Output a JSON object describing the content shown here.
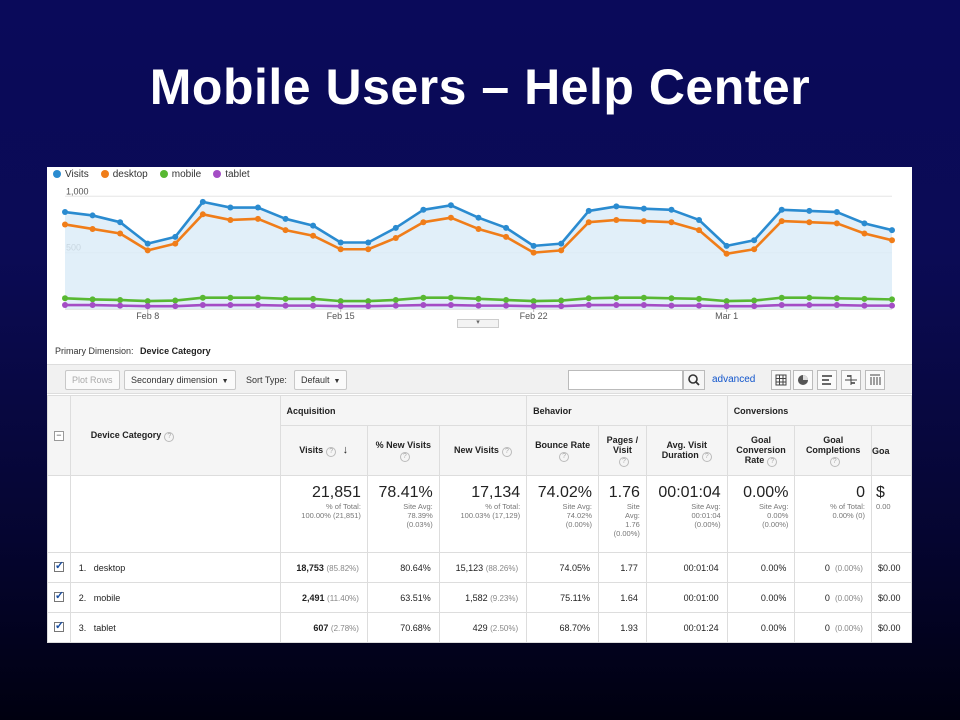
{
  "slide": {
    "title": "Mobile Users – Help Center"
  },
  "chart_data": {
    "type": "line",
    "legend": [
      "Visits",
      "desktop",
      "mobile",
      "tablet"
    ],
    "y_ticks": [
      "1,000",
      "500"
    ],
    "x_ticks": [
      "Feb 8",
      "Feb 15",
      "Feb 22",
      "Mar 1"
    ],
    "ylim": [
      0,
      1100
    ],
    "series": [
      {
        "name": "Visits",
        "color": "#2a8bd0",
        "values": [
          860,
          830,
          770,
          580,
          640,
          950,
          900,
          900,
          800,
          740,
          590,
          590,
          720,
          880,
          920,
          810,
          720,
          560,
          580,
          870,
          910,
          890,
          880,
          790,
          560,
          610,
          880,
          870,
          860,
          760,
          700
        ]
      },
      {
        "name": "desktop",
        "color": "#f07d19",
        "values": [
          750,
          710,
          670,
          520,
          580,
          840,
          790,
          800,
          700,
          650,
          530,
          530,
          630,
          770,
          810,
          710,
          640,
          500,
          520,
          770,
          790,
          780,
          770,
          700,
          490,
          530,
          780,
          770,
          760,
          670,
          610
        ]
      },
      {
        "name": "mobile",
        "color": "#58b832",
        "values": [
          95,
          85,
          80,
          70,
          75,
          100,
          100,
          100,
          90,
          90,
          70,
          70,
          80,
          100,
          100,
          90,
          80,
          70,
          75,
          95,
          100,
          100,
          95,
          90,
          70,
          75,
          100,
          100,
          95,
          90,
          85
        ]
      },
      {
        "name": "tablet",
        "color": "#a44dc5",
        "values": [
          35,
          35,
          30,
          25,
          25,
          35,
          35,
          35,
          30,
          30,
          25,
          25,
          30,
          35,
          35,
          30,
          30,
          25,
          25,
          35,
          35,
          35,
          30,
          30,
          25,
          25,
          35,
          35,
          35,
          30,
          30
        ]
      }
    ]
  },
  "report": {
    "primary_dimension_label": "Primary Dimension:",
    "primary_dimension_value": "Device Category",
    "toolbar": {
      "plot_rows": "Plot Rows",
      "secondary_dimension": "Secondary dimension",
      "sort_type_label": "Sort Type:",
      "sort_type_value": "Default",
      "search_value": "",
      "advanced": "advanced"
    },
    "groups": {
      "acquisition": "Acquisition",
      "behavior": "Behavior",
      "conversions": "Conversions"
    },
    "columns": {
      "device_category": "Device Category",
      "visits": "Visits",
      "new_visits_pct": "% New Visits",
      "new_visits": "New Visits",
      "bounce_rate": "Bounce Rate",
      "pages_visit": "Pages / Visit",
      "avg_visit_duration": "Avg. Visit Duration",
      "goal_conv_rate": "Goal Conversion Rate",
      "goal_completions": "Goal Completions",
      "goal_value": "Goa"
    },
    "totals": {
      "visits": "21,851",
      "visits_sub1": "% of Total:",
      "visits_sub2": "100.00% (21,851)",
      "new_visits_pct": "78.41%",
      "new_visits_pct_sub1": "Site Avg:",
      "new_visits_pct_sub2": "78.39%",
      "new_visits_pct_sub3": "(0.03%)",
      "new_visits": "17,134",
      "new_visits_sub1": "% of Total:",
      "new_visits_sub2": "100.03% (17,129)",
      "bounce_rate": "74.02%",
      "bounce_rate_sub1": "Site Avg:",
      "bounce_rate_sub2": "74.02%",
      "bounce_rate_sub3": "(0.00%)",
      "pages_visit": "1.76",
      "pages_visit_sub1": "Site",
      "pages_visit_sub2": "Avg:",
      "pages_visit_sub3": "1.76",
      "pages_visit_sub4": "(0.00%)",
      "avg_duration": "00:01:04",
      "avg_duration_sub1": "Site Avg:",
      "avg_duration_sub2": "00:01:04",
      "avg_duration_sub3": "(0.00%)",
      "goal_conv": "0.00%",
      "goal_conv_sub1": "Site Avg:",
      "goal_conv_sub2": "0.00%",
      "goal_conv_sub3": "(0.00%)",
      "goal_comp": "0",
      "goal_comp_sub1": "% of Total:",
      "goal_comp_sub2": "0.00% (0)",
      "goal_value": "$",
      "goal_value_sub": "0.00"
    },
    "rows": [
      {
        "index": "1.",
        "name": "desktop",
        "visits": "18,753",
        "visits_pct": "(85.82%)",
        "new_pct": "80.64%",
        "new_visits": "15,123",
        "new_visits_pct": "(88.26%)",
        "bounce": "74.05%",
        "pages": "1.77",
        "duration": "00:01:04",
        "conv": "0.00%",
        "comp": "0",
        "comp_pct": "(0.00%)",
        "value": "$0.00"
      },
      {
        "index": "2.",
        "name": "mobile",
        "visits": "2,491",
        "visits_pct": "(11.40%)",
        "new_pct": "63.51%",
        "new_visits": "1,582",
        "new_visits_pct": "(9.23%)",
        "bounce": "75.11%",
        "pages": "1.64",
        "duration": "00:01:00",
        "conv": "0.00%",
        "comp": "0",
        "comp_pct": "(0.00%)",
        "value": "$0.00"
      },
      {
        "index": "3.",
        "name": "tablet",
        "visits": "607",
        "visits_pct": "(2.78%)",
        "new_pct": "70.68%",
        "new_visits": "429",
        "new_visits_pct": "(2.50%)",
        "bounce": "68.70%",
        "pages": "1.93",
        "duration": "00:01:24",
        "conv": "0.00%",
        "comp": "0",
        "comp_pct": "(0.00%)",
        "value": "$0.00"
      }
    ]
  }
}
